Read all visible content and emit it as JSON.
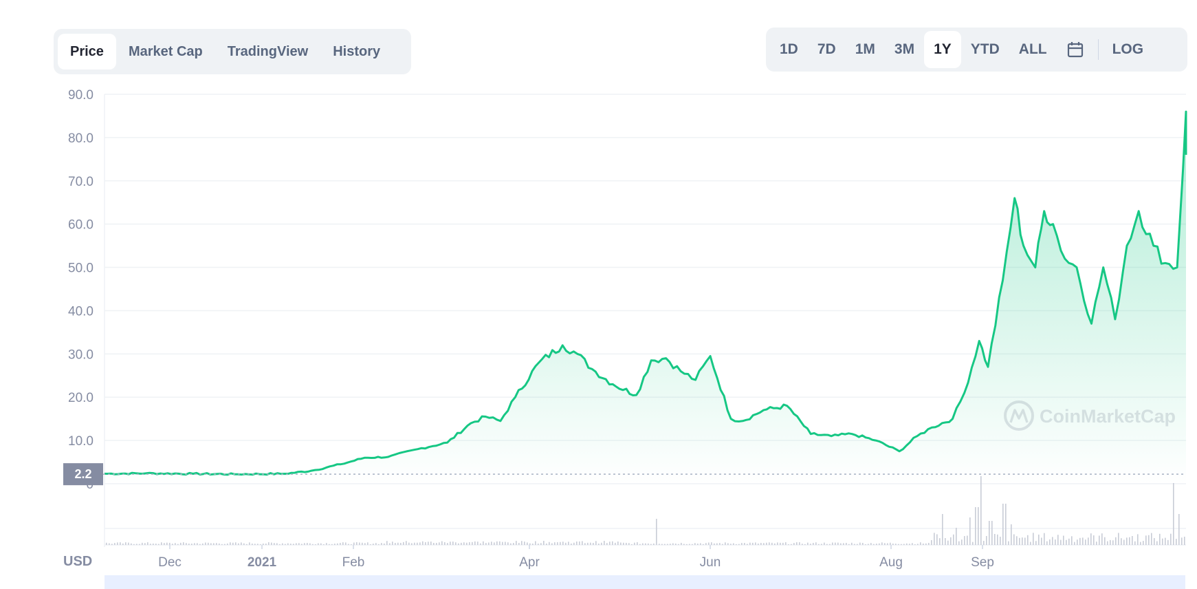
{
  "tabs": {
    "view": [
      {
        "label": "Price",
        "active": true
      },
      {
        "label": "Market Cap",
        "active": false
      },
      {
        "label": "TradingView",
        "active": false
      },
      {
        "label": "History",
        "active": false
      }
    ],
    "range": [
      {
        "label": "1D",
        "active": false
      },
      {
        "label": "7D",
        "active": false
      },
      {
        "label": "1M",
        "active": false
      },
      {
        "label": "3M",
        "active": false
      },
      {
        "label": "1Y",
        "active": true
      },
      {
        "label": "YTD",
        "active": false
      },
      {
        "label": "ALL",
        "active": false
      }
    ],
    "calendar_icon": "calendar-icon",
    "log_label": "LOG"
  },
  "currency": "USD",
  "watermark": "CoinMarketCap",
  "current_price_label": "2.2",
  "colors": {
    "line": "#16c784",
    "fill": "#16c784",
    "grid": "#eff2f5",
    "axis_text": "#858ca2"
  },
  "chart_data": {
    "type": "area",
    "title": "",
    "xlabel": "",
    "ylabel": "",
    "ylim": [
      0,
      90
    ],
    "yticks": [
      "0",
      "10.0",
      "20.0",
      "30.0",
      "40.0",
      "50.0",
      "60.0",
      "70.0",
      "80.0",
      "90.0"
    ],
    "xticks": [
      "Dec",
      "2021",
      "Feb",
      "Apr",
      "Jun",
      "Aug",
      "Sep"
    ],
    "grid": true,
    "series": [
      {
        "name": "",
        "x": [
          "2020-11-01",
          "2020-11-15",
          "2020-12-01",
          "2020-12-15",
          "2021-01-01",
          "2021-01-10",
          "2021-01-20",
          "2021-01-28",
          "2021-02-05",
          "2021-02-15",
          "2021-02-25",
          "2021-03-05",
          "2021-03-10",
          "2021-03-15",
          "2021-03-20",
          "2021-03-28",
          "2021-04-05",
          "2021-04-10",
          "2021-04-15",
          "2021-04-22",
          "2021-04-30",
          "2021-05-05",
          "2021-05-10",
          "2021-05-15",
          "2021-05-20",
          "2021-05-25",
          "2021-06-01",
          "2021-06-05",
          "2021-06-12",
          "2021-06-20",
          "2021-06-28",
          "2021-07-05",
          "2021-07-12",
          "2021-07-20",
          "2021-07-28",
          "2021-08-03",
          "2021-08-08",
          "2021-08-15",
          "2021-08-19",
          "2021-08-24",
          "2021-08-27",
          "2021-09-01",
          "2021-09-05",
          "2021-09-08",
          "2021-09-12",
          "2021-09-15",
          "2021-09-18",
          "2021-09-22",
          "2021-09-26",
          "2021-10-01",
          "2021-10-05",
          "2021-10-09",
          "2021-10-13",
          "2021-10-17",
          "2021-10-22",
          "2021-10-26",
          "2021-10-30",
          "2021-11-02"
        ],
        "values": [
          2.3,
          2.4,
          2.3,
          2.2,
          2.3,
          3.0,
          4.5,
          6.0,
          6.2,
          8.0,
          9.5,
          14.0,
          15.5,
          14.5,
          20.0,
          28.0,
          32.0,
          30.0,
          26.5,
          23.0,
          20.5,
          28.5,
          29.0,
          26.0,
          24.0,
          29.5,
          15.0,
          14.5,
          17.0,
          18.0,
          11.5,
          11.0,
          11.5,
          10.0,
          7.5,
          11.0,
          13.0,
          15.0,
          21.0,
          33.0,
          27.0,
          47.0,
          66.0,
          55.0,
          50.0,
          63.0,
          60.0,
          52.0,
          50.0,
          37.0,
          50.0,
          38.0,
          55.0,
          63.0,
          55.0,
          51.0,
          50.0,
          86.0
        ]
      }
    ]
  }
}
